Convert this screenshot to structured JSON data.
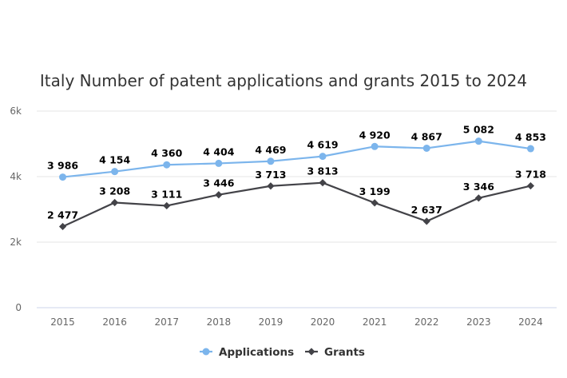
{
  "chart_data": {
    "type": "line",
    "title": "Italy Number of patent applications and grants 2015 to 2024",
    "categories": [
      "2015",
      "2016",
      "2017",
      "2018",
      "2019",
      "2020",
      "2021",
      "2022",
      "2023",
      "2024"
    ],
    "ylim": [
      0,
      6000
    ],
    "yticks": [
      0,
      2000,
      4000,
      6000
    ],
    "ytick_labels": [
      "0",
      "2k",
      "4k",
      "6k"
    ],
    "xlabel": "",
    "ylabel": "",
    "legend_position": "bottom-center",
    "grid": true,
    "series": [
      {
        "name": "Applications",
        "color": "#7cb5ec",
        "marker": "circle",
        "values": [
          3986,
          4154,
          4360,
          4404,
          4469,
          4619,
          4920,
          4867,
          5082,
          4853
        ],
        "labels": [
          "3 986",
          "4 154",
          "4 360",
          "4 404",
          "4 469",
          "4 619",
          "4 920",
          "4 867",
          "5 082",
          "4 853"
        ]
      },
      {
        "name": "Grants",
        "color": "#434348",
        "marker": "diamond",
        "values": [
          2477,
          3208,
          3111,
          3446,
          3713,
          3813,
          3199,
          2637,
          3346,
          3718
        ],
        "labels": [
          "2 477",
          "3 208",
          "3 111",
          "3 446",
          "3 713",
          "3 813",
          "3 199",
          "2 637",
          "3 346",
          "3 718"
        ]
      }
    ]
  }
}
